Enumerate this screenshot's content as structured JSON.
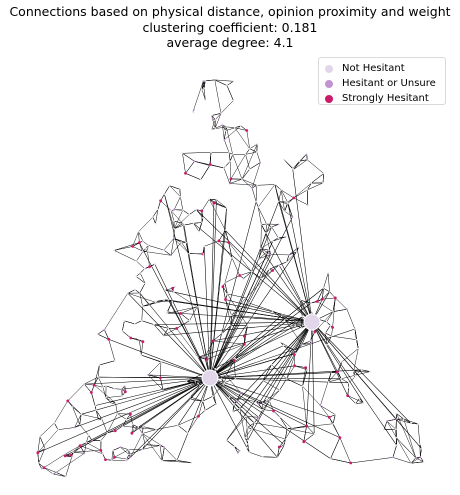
{
  "title": {
    "line1": "Connections based on physical distance, opinion proximity and weight",
    "line2": "clustering coefficient: 0.181",
    "line3": "average degree: 4.1"
  },
  "stats": {
    "clustering_coefficient": 0.181,
    "average_degree": 4.1
  },
  "legend": [
    {
      "label": "Not Hesitant",
      "color": "#e2d6ea"
    },
    {
      "label": "Hesitant or Unsure",
      "color": "#c194cf"
    },
    {
      "label": "Strongly Hesitant",
      "color": "#cc1a6a"
    }
  ],
  "colors": {
    "edge": "#000000",
    "hub": "#e2d6ea"
  },
  "graph": {
    "hubs": [
      {
        "id": "hub-a",
        "category": "Not Hesitant"
      },
      {
        "id": "hub-b",
        "category": "Not Hesitant"
      }
    ]
  }
}
